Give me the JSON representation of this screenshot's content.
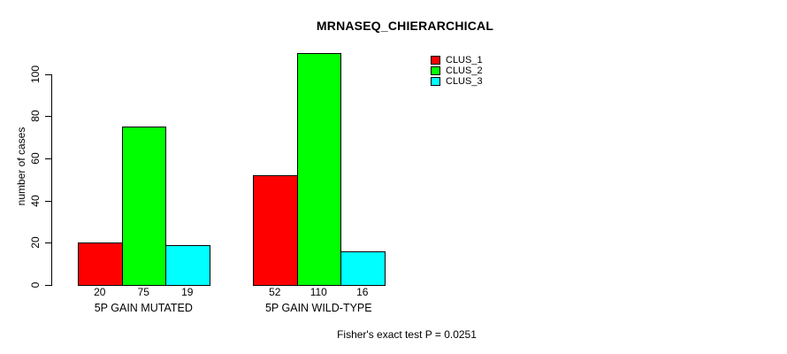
{
  "chart_data": {
    "type": "bar",
    "title": "MRNASEQ_CHIERARCHICAL",
    "ylabel": "number of cases",
    "xlabel": "",
    "categories": [
      "5P GAIN MUTATED",
      "5P GAIN WILD-TYPE"
    ],
    "series": [
      {
        "name": "CLUS_1",
        "color": "#FF0000",
        "values": [
          20,
          52
        ]
      },
      {
        "name": "CLUS_2",
        "color": "#00FF00",
        "values": [
          75,
          110
        ]
      },
      {
        "name": "CLUS_3",
        "color": "#00FFFF",
        "values": [
          19,
          16
        ]
      }
    ],
    "bar_value_labels": [
      [
        "20",
        "75",
        "19"
      ],
      [
        "52",
        "110",
        "16"
      ]
    ],
    "yticks": [
      "0",
      "20",
      "40",
      "60",
      "80",
      "100"
    ],
    "ylim": [
      0,
      110
    ],
    "grid": false,
    "legend_position": "top-right",
    "annotation": "Fisher's exact test P = 0.0251",
    "bar_border_color": "#000000",
    "background_color": "#FFFFFF"
  }
}
